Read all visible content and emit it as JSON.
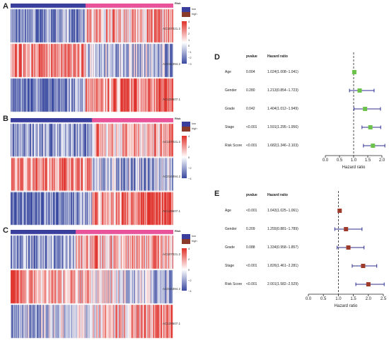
{
  "panels": {
    "A": "A",
    "B": "B",
    "C": "C",
    "D": "D",
    "E": "E"
  },
  "heatmaps": [
    {
      "id": "A",
      "risk_header": "Risk",
      "risk_levels": [
        "low",
        "high"
      ],
      "risk_colors": {
        "low": "#3a3f9e",
        "high": "#e8539a"
      },
      "genes": [
        "AC107021.2",
        "AC016394.2",
        "AC129507.1"
      ],
      "legend_ticks": [
        "4",
        "3",
        "2",
        "1",
        "0",
        "−1",
        "−2",
        "−3"
      ],
      "low_fraction": 0.46
    },
    {
      "id": "B",
      "risk_header": "Risk",
      "risk_levels": [
        "low",
        "high"
      ],
      "risk_colors": {
        "low": "#3a3f9e",
        "high": "#e8539a"
      },
      "genes": [
        "AC107021.2",
        "AC016394.2",
        "AC129507.1"
      ],
      "legend_ticks": [
        "4",
        "2",
        "0",
        "−2",
        "−4"
      ],
      "low_fraction": 0.5
    },
    {
      "id": "C",
      "risk_header": "Risk",
      "risk_levels": [
        "low",
        "high"
      ],
      "risk_colors": {
        "low": "#3a3f9e",
        "high": "#e8539a"
      },
      "genes": [
        "AC107021.2",
        "AC016394.2",
        "AC129507.1"
      ],
      "legend_ticks": [
        "4",
        "2",
        "0",
        "−2",
        "−4"
      ],
      "low_fraction": 0.4
    }
  ],
  "colors": {
    "red": "#e0302a",
    "white": "#ffffff",
    "blue": "#3a4aa0",
    "green_marker": "#6cc24a",
    "brown_marker": "#9e3a2a",
    "ci_line": "#2c2f8f"
  },
  "chart_data": [
    {
      "id": "D",
      "type": "scatter",
      "title": "",
      "xlabel": "Hazard ratio",
      "ylabel": "",
      "col_headers": [
        "pvalue",
        "Hazard ratio"
      ],
      "xlim": [
        0,
        2.0
      ],
      "xticks": [
        "0.0",
        "0.5",
        "1.0",
        "1.5",
        "2.0"
      ],
      "reference_line": 1.0,
      "rows": [
        {
          "label": "Age",
          "pvalue": "0.004",
          "hr_text": "1.024(1.008−1.041)",
          "hr": 1.024,
          "lo": 1.008,
          "hi": 1.041
        },
        {
          "label": "Gender",
          "pvalue": "0.280",
          "hr_text": "1.213(0.854−1.723)",
          "hr": 1.213,
          "lo": 0.854,
          "hi": 1.723
        },
        {
          "label": "Grade",
          "pvalue": "0.042",
          "hr_text": "1.404(1.012−1.949)",
          "hr": 1.404,
          "lo": 1.012,
          "hi": 1.949
        },
        {
          "label": "Stage",
          "pvalue": "<0.001",
          "hr_text": "1.591(1.295−1.956)",
          "hr": 1.591,
          "lo": 1.295,
          "hi": 1.956
        },
        {
          "label": "Risk Score",
          "pvalue": "<0.001",
          "hr_text": "1.682(1.346−2.103)",
          "hr": 1.682,
          "lo": 1.346,
          "hi": 2.103
        }
      ]
    },
    {
      "id": "E",
      "type": "scatter",
      "title": "",
      "xlabel": "Hazard ratio",
      "ylabel": "",
      "col_headers": [
        "pvalue",
        "Hazard ratio"
      ],
      "xlim": [
        0,
        2.5
      ],
      "xticks": [
        "0.0",
        "0.5",
        "1.0",
        "1.5",
        "2.0",
        "2.5"
      ],
      "reference_line": 1.0,
      "rows": [
        {
          "label": "Age",
          "pvalue": "<0.001",
          "hr_text": "1.043(1.025−1.061)",
          "hr": 1.043,
          "lo": 1.025,
          "hi": 1.061
        },
        {
          "label": "Gender",
          "pvalue": "0.209",
          "hr_text": "1.255(0.881−1.789)",
          "hr": 1.255,
          "lo": 0.881,
          "hi": 1.789
        },
        {
          "label": "Grade",
          "pvalue": "0.088",
          "hr_text": "1.334(0.958−1.857)",
          "hr": 1.334,
          "lo": 0.958,
          "hi": 1.857
        },
        {
          "label": "Stage",
          "pvalue": "<0.001",
          "hr_text": "1.826(1.461−2.281)",
          "hr": 1.826,
          "lo": 1.461,
          "hi": 2.281
        },
        {
          "label": "Risk Score",
          "pvalue": "<0.001",
          "hr_text": "2.001(1.582−2.529)",
          "hr": 2.001,
          "lo": 1.582,
          "hi": 2.529
        }
      ]
    }
  ]
}
